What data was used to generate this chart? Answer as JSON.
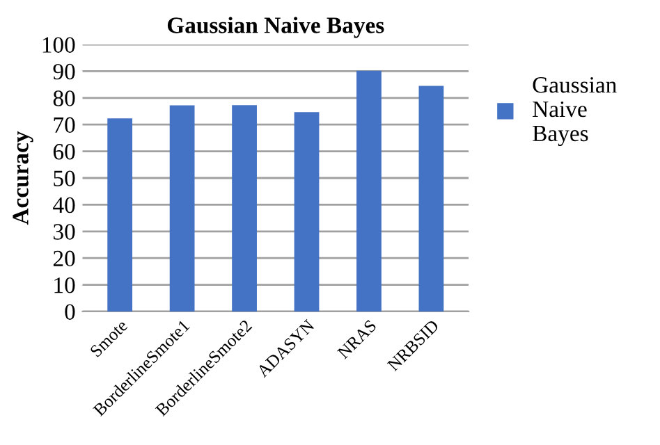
{
  "chart_data": {
    "type": "bar",
    "title": "Gaussian Naive Bayes",
    "ylabel": "Accuracy",
    "categories": [
      "Smote",
      "BorderlineSmote1",
      "BorderlineSmote2",
      "ADASYN",
      "NRAS",
      "NRBSID"
    ],
    "series": [
      {
        "name": "Gaussian Naive Bayes",
        "color": "#4472c4",
        "values": [
          72.3,
          77.2,
          77.3,
          74.7,
          90.2,
          84.5
        ]
      }
    ],
    "ylim": [
      0,
      100
    ],
    "yticks": [
      0,
      10,
      20,
      30,
      40,
      50,
      60,
      70,
      80,
      90,
      100
    ],
    "grid": "y",
    "legend": "right"
  }
}
